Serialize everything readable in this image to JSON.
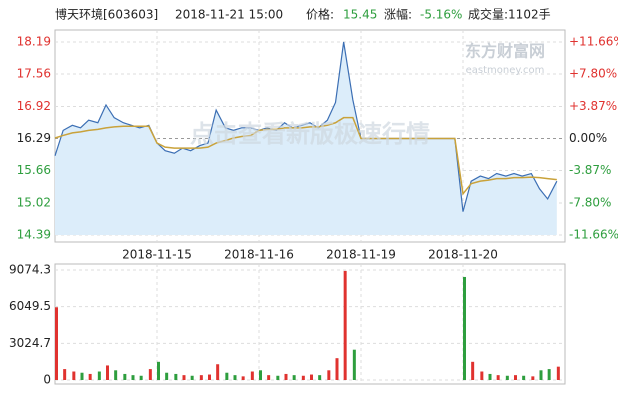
{
  "header": {
    "name": "博天环境[603603]",
    "time": "2018-11-21 15:00",
    "price_label": "价格:",
    "price": "15.45",
    "change_label": "涨幅:",
    "change": "-5.16%",
    "volume": "成交量:1102手"
  },
  "watermark": "点击查看新版极速行情",
  "logo": {
    "name": "东方财富网",
    "site": "eastmoney.com"
  },
  "chart_data": [
    {
      "type": "line",
      "x": [
        0,
        0.08,
        0.17,
        0.25,
        0.33,
        0.42,
        0.5,
        0.58,
        0.67,
        0.75,
        0.83,
        0.92,
        1,
        1.08,
        1.17,
        1.25,
        1.33,
        1.42,
        1.5,
        1.58,
        1.67,
        1.75,
        1.83,
        1.92,
        2,
        2.08,
        2.17,
        2.25,
        2.33,
        2.42,
        2.5,
        2.58,
        2.67,
        2.75,
        2.83,
        2.92,
        3,
        3.08,
        3.17,
        3.25,
        3.33,
        3.42,
        3.5,
        3.58,
        3.67,
        3.75,
        3.83,
        3.92,
        4,
        4.08,
        4.17,
        4.25,
        4.33,
        4.42,
        4.5,
        4.58,
        4.67,
        4.75,
        4.83,
        4.92
      ],
      "series": [
        {
          "color": "#3c6fb4",
          "fill": "#dcedfa",
          "values": [
            15.95,
            16.45,
            16.55,
            16.5,
            16.65,
            16.6,
            16.95,
            16.7,
            16.6,
            16.55,
            16.5,
            16.55,
            16.2,
            16.05,
            16.0,
            16.1,
            16.05,
            16.15,
            16.2,
            16.85,
            16.5,
            16.45,
            16.5,
            16.5,
            16.45,
            16.5,
            16.45,
            16.6,
            16.5,
            16.55,
            16.6,
            16.5,
            16.65,
            17.0,
            18.19,
            17.05,
            16.29,
            16.29,
            16.29,
            16.29,
            16.29,
            16.29,
            16.29,
            16.29,
            16.29,
            16.29,
            16.29,
            16.29,
            14.85,
            15.45,
            15.55,
            15.5,
            15.6,
            15.55,
            15.6,
            15.55,
            15.6,
            15.3,
            15.1,
            15.45
          ]
        },
        {
          "color": "#c9a23a",
          "values": [
            16.3,
            16.35,
            16.4,
            16.42,
            16.45,
            16.47,
            16.5,
            16.52,
            16.53,
            16.53,
            16.53,
            16.53,
            16.2,
            16.12,
            16.1,
            16.1,
            16.1,
            16.1,
            16.12,
            16.2,
            16.25,
            16.3,
            16.33,
            16.35,
            16.45,
            16.47,
            16.47,
            16.5,
            16.5,
            16.5,
            16.52,
            16.52,
            16.55,
            16.6,
            16.7,
            16.7,
            16.29,
            16.29,
            16.29,
            16.29,
            16.29,
            16.29,
            16.29,
            16.29,
            16.29,
            16.29,
            16.29,
            16.29,
            15.2,
            15.4,
            15.45,
            15.47,
            15.5,
            15.5,
            15.52,
            15.52,
            15.53,
            15.52,
            15.5,
            15.48
          ]
        }
      ],
      "xlim": [
        0,
        5
      ],
      "xticks": [
        {
          "value": 1,
          "label": "2018-11-15"
        },
        {
          "value": 2,
          "label": "2018-11-16"
        },
        {
          "value": 3,
          "label": "2018-11-19"
        },
        {
          "value": 4,
          "label": "2018-11-20"
        }
      ],
      "ylim": [
        14.39,
        18.19
      ],
      "yticks": [
        18.19,
        17.56,
        16.92,
        16.29,
        15.66,
        15.02,
        14.39
      ],
      "y2lim": [
        -11.66,
        11.66
      ],
      "y2ticks": [
        {
          "value": 11.66,
          "label": "+11.66%"
        },
        {
          "value": 7.8,
          "label": "+7.80%"
        },
        {
          "value": 3.87,
          "label": "+3.87%"
        },
        {
          "value": 0,
          "label": "0.00%"
        },
        {
          "value": -3.87,
          "label": "-3.87%"
        },
        {
          "value": -7.8,
          "label": "-7.80%"
        },
        {
          "value": -11.66,
          "label": "-11.66%"
        }
      ],
      "up_color": "#e0322f",
      "down_color": "#2e9e3e",
      "grid": true
    },
    {
      "type": "bar",
      "x": [
        0,
        0.08,
        0.17,
        0.25,
        0.33,
        0.42,
        0.5,
        0.58,
        0.67,
        0.75,
        0.83,
        0.92,
        1,
        1.08,
        1.17,
        1.25,
        1.33,
        1.42,
        1.5,
        1.58,
        1.67,
        1.75,
        1.83,
        1.92,
        2,
        2.08,
        2.17,
        2.25,
        2.33,
        2.42,
        2.5,
        2.58,
        2.67,
        2.75,
        2.83,
        2.92,
        3,
        3.08,
        3.17,
        3.25,
        3.33,
        3.42,
        3.5,
        3.58,
        3.67,
        3.75,
        3.83,
        3.92,
        4,
        4.08,
        4.17,
        4.25,
        4.33,
        4.42,
        4.5,
        4.58,
        4.67,
        4.75,
        4.83,
        4.92
      ],
      "values": [
        6000,
        900,
        700,
        600,
        500,
        700,
        1200,
        800,
        500,
        400,
        350,
        900,
        1500,
        600,
        500,
        400,
        350,
        400,
        450,
        1300,
        600,
        400,
        300,
        700,
        800,
        400,
        350,
        500,
        400,
        350,
        450,
        400,
        800,
        1800,
        9000,
        2500,
        0,
        0,
        0,
        0,
        0,
        0,
        0,
        0,
        0,
        0,
        0,
        0,
        8500,
        1500,
        700,
        500,
        400,
        350,
        400,
        350,
        300,
        800,
        900,
        1100
      ],
      "xlim": [
        0,
        5
      ],
      "ylim": [
        0,
        9074.3
      ],
      "yticks": [
        9074.3,
        6049.5,
        3024.7,
        0
      ],
      "up_color": "#e0322f",
      "down_color": "#2e9e3e",
      "grid": true
    }
  ]
}
